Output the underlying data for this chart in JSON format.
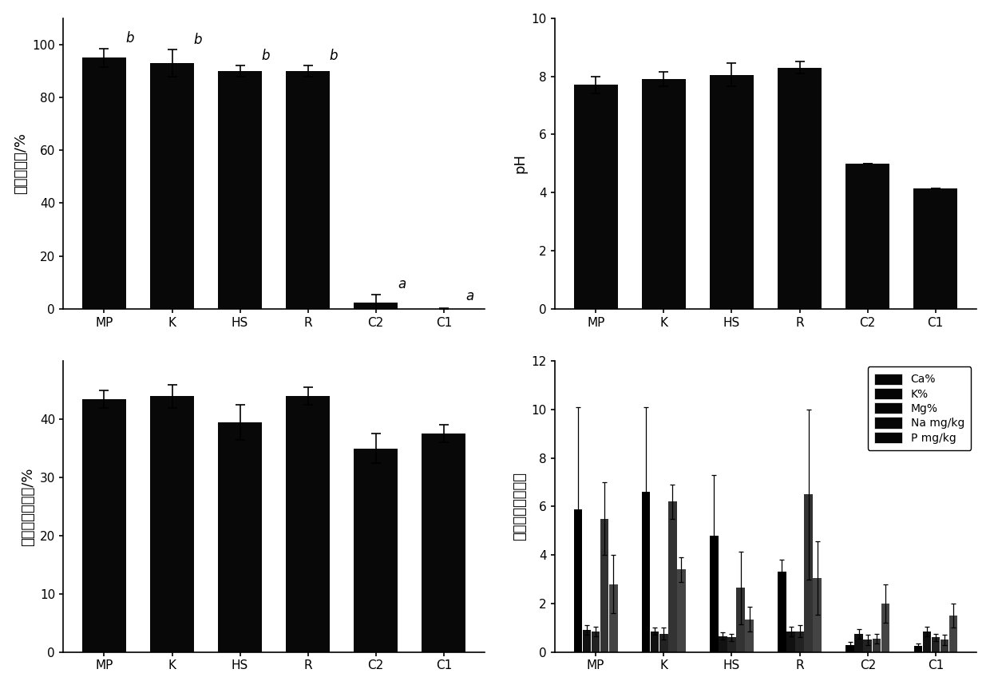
{
  "categories": [
    "MP",
    "K",
    "HS",
    "R",
    "C2",
    "C1"
  ],
  "plot1_values": [
    95,
    93,
    90,
    90,
    2.5,
    0
  ],
  "plot1_errors": [
    3.5,
    5,
    2,
    2,
    3,
    0.3
  ],
  "plot1_ylabel": "植株覆盖度/%",
  "plot1_ylim": [
    0,
    110
  ],
  "plot1_yticks": [
    0,
    20,
    40,
    60,
    80,
    100
  ],
  "plot1_labels": [
    "b",
    "b",
    "b",
    "b",
    "a",
    "a"
  ],
  "plot2_values": [
    7.7,
    7.9,
    8.05,
    8.3,
    5.0,
    4.15
  ],
  "plot2_errors": [
    0.3,
    0.25,
    0.4,
    0.2,
    0.0,
    0.0
  ],
  "plot2_ylabel": "pH",
  "plot2_ylim": [
    0,
    10
  ],
  "plot2_yticks": [
    0,
    2,
    4,
    6,
    8,
    10
  ],
  "plot3_values": [
    43.5,
    44,
    39.5,
    44,
    35,
    37.5
  ],
  "plot3_errors": [
    1.5,
    2,
    3,
    1.5,
    2.5,
    1.5
  ],
  "plot3_ylabel": "土壤最大持水量/%",
  "plot3_ylim": [
    0,
    50
  ],
  "plot3_yticks": [
    0,
    10,
    20,
    30,
    40
  ],
  "plot4_groups": [
    "Ca%",
    "K%",
    "Mg%",
    "Na mg/kg",
    "P mg/kg"
  ],
  "plot4_colors": [
    "#000000",
    "#111111",
    "#222222",
    "#333333",
    "#444444"
  ],
  "plot4_mp": [
    5.9,
    0.9,
    0.85,
    5.5,
    2.8
  ],
  "plot4_k": [
    6.6,
    0.85,
    0.75,
    6.2,
    3.4
  ],
  "plot4_hs": [
    4.8,
    0.65,
    0.6,
    2.65,
    1.35
  ],
  "plot4_r": [
    3.3,
    0.85,
    0.85,
    6.5,
    3.05
  ],
  "plot4_c2": [
    0.3,
    0.75,
    0.5,
    0.55,
    2.0
  ],
  "plot4_c1": [
    0.25,
    0.85,
    0.6,
    0.5,
    1.5
  ],
  "plot4_mp_err": [
    4.2,
    0.2,
    0.2,
    1.5,
    1.2
  ],
  "plot4_k_err": [
    3.5,
    0.15,
    0.25,
    0.7,
    0.5
  ],
  "plot4_hs_err": [
    2.5,
    0.15,
    0.15,
    1.5,
    0.5
  ],
  "plot4_r_err": [
    0.5,
    0.2,
    0.25,
    3.5,
    1.5
  ],
  "plot4_c2_err": [
    0.1,
    0.2,
    0.2,
    0.2,
    0.8
  ],
  "plot4_c1_err": [
    0.1,
    0.2,
    0.15,
    0.2,
    0.5
  ],
  "plot4_ylabel": "土壤营养元素含量",
  "plot4_ylim": [
    0,
    12
  ],
  "plot4_yticks": [
    0,
    2,
    4,
    6,
    8,
    10,
    12
  ],
  "bar_color": "#080808",
  "bar_width": 0.65,
  "fontsize_label": 13,
  "fontsize_tick": 11,
  "fontsize_annot": 12
}
